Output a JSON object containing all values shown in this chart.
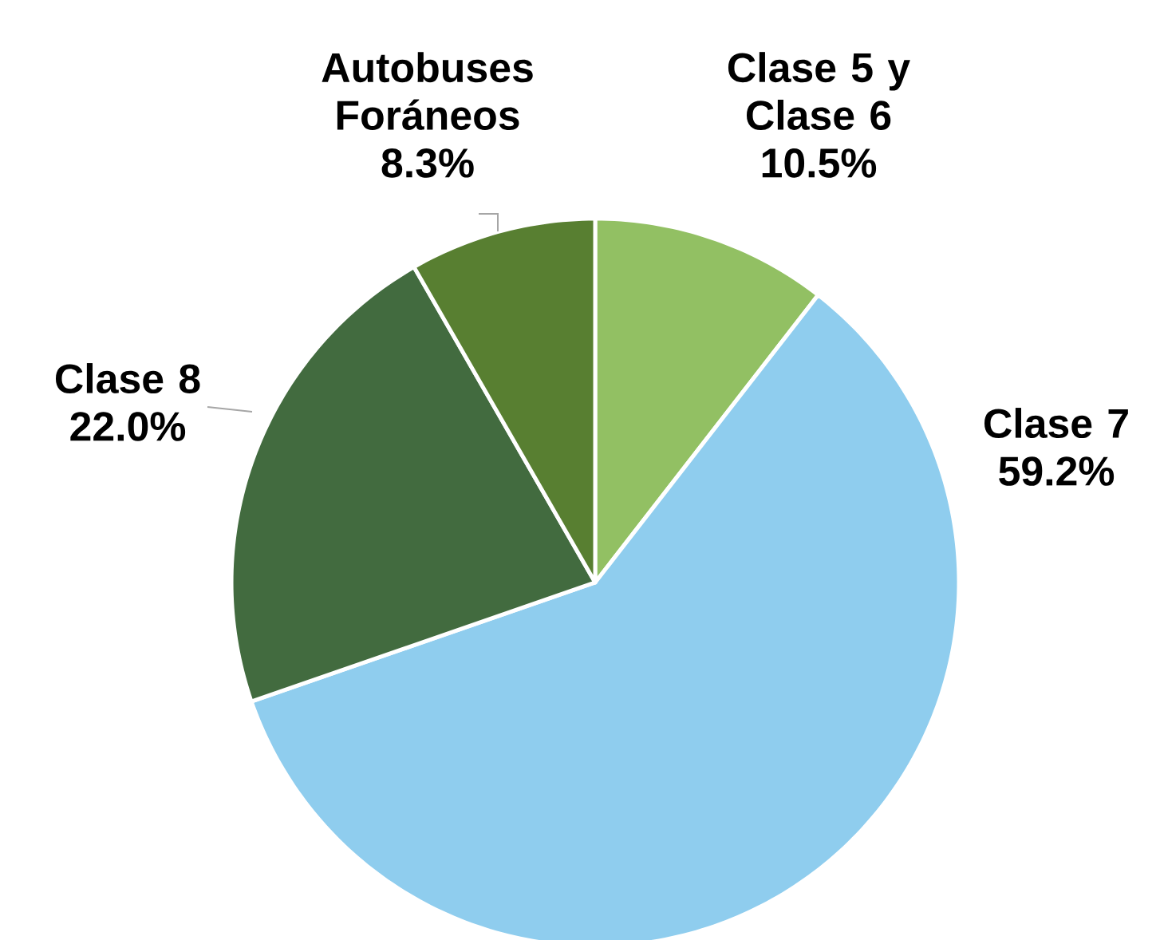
{
  "chart_data": {
    "type": "pie",
    "categories": [
      "Clase 5 y Clase 6",
      "Clase 7",
      "Clase 8",
      "Autobuses Foráneos"
    ],
    "values": [
      10.5,
      59.2,
      22.0,
      8.3
    ],
    "value_labels": [
      "10.5%",
      "59.2%",
      "22.0%",
      "8.3%"
    ],
    "colors": [
      "#92c063",
      "#8fcdee",
      "#426b3f",
      "#587f31"
    ]
  }
}
